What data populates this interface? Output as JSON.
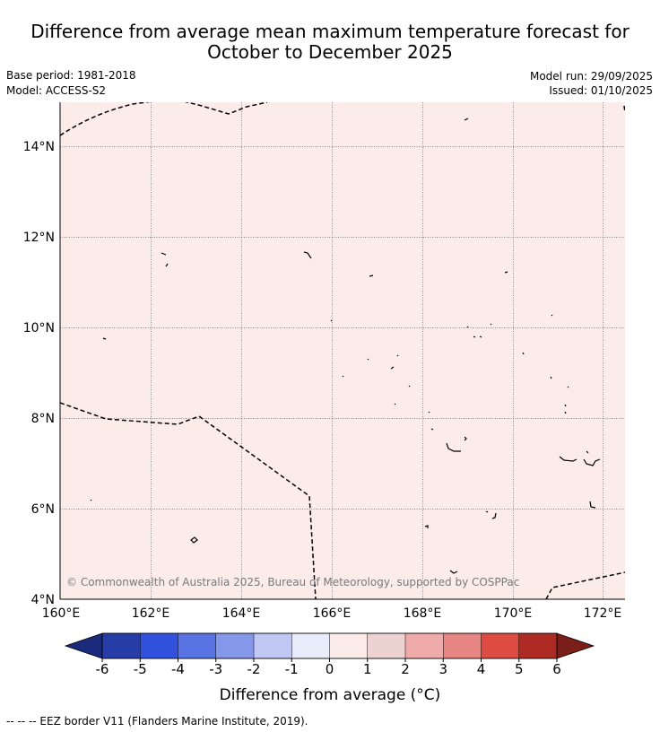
{
  "title": {
    "line1": "Difference from average mean maximum temperature forecast for",
    "line2": "October to December 2025"
  },
  "meta": {
    "base_period": "Base period: 1981-2018",
    "model": "Model: ACCESS-S2",
    "model_run": "Model run: 29/09/2025",
    "issued": "Issued: 01/10/2025"
  },
  "map": {
    "fill_color": "#fbebe9",
    "fill_category": "0 to 1",
    "lat_labels": [
      "14°N",
      "12°N",
      "10°N",
      "8°N",
      "6°N",
      "4°N"
    ],
    "lon_labels": [
      "160°E",
      "162°E",
      "164°E",
      "166°E",
      "168°E",
      "170°E",
      "172°E"
    ],
    "copyright": "© Commonwealth of Australia 2025, Bureau of Meteorology, supported by COSPPac"
  },
  "colorbar": {
    "label": "Difference from average (°C)",
    "ticks": [
      "-6",
      "-5",
      "-4",
      "-3",
      "-2",
      "-1",
      "0",
      "1",
      "2",
      "3",
      "4",
      "5",
      "6"
    ],
    "colors": [
      "#263da8",
      "#3252de",
      "#5a73e2",
      "#8497e8",
      "#c0c7f3",
      "#e8ecfb",
      "#fbebe9",
      "#ecd3d2",
      "#efaba9",
      "#e78582",
      "#dd4b42",
      "#ad2b23"
    ],
    "under_color": "#1b2a7a",
    "over_color": "#7a1e1a"
  },
  "footnote": "--  --  -- EEZ border V11 (Flanders Marine Institute, 2019)."
}
